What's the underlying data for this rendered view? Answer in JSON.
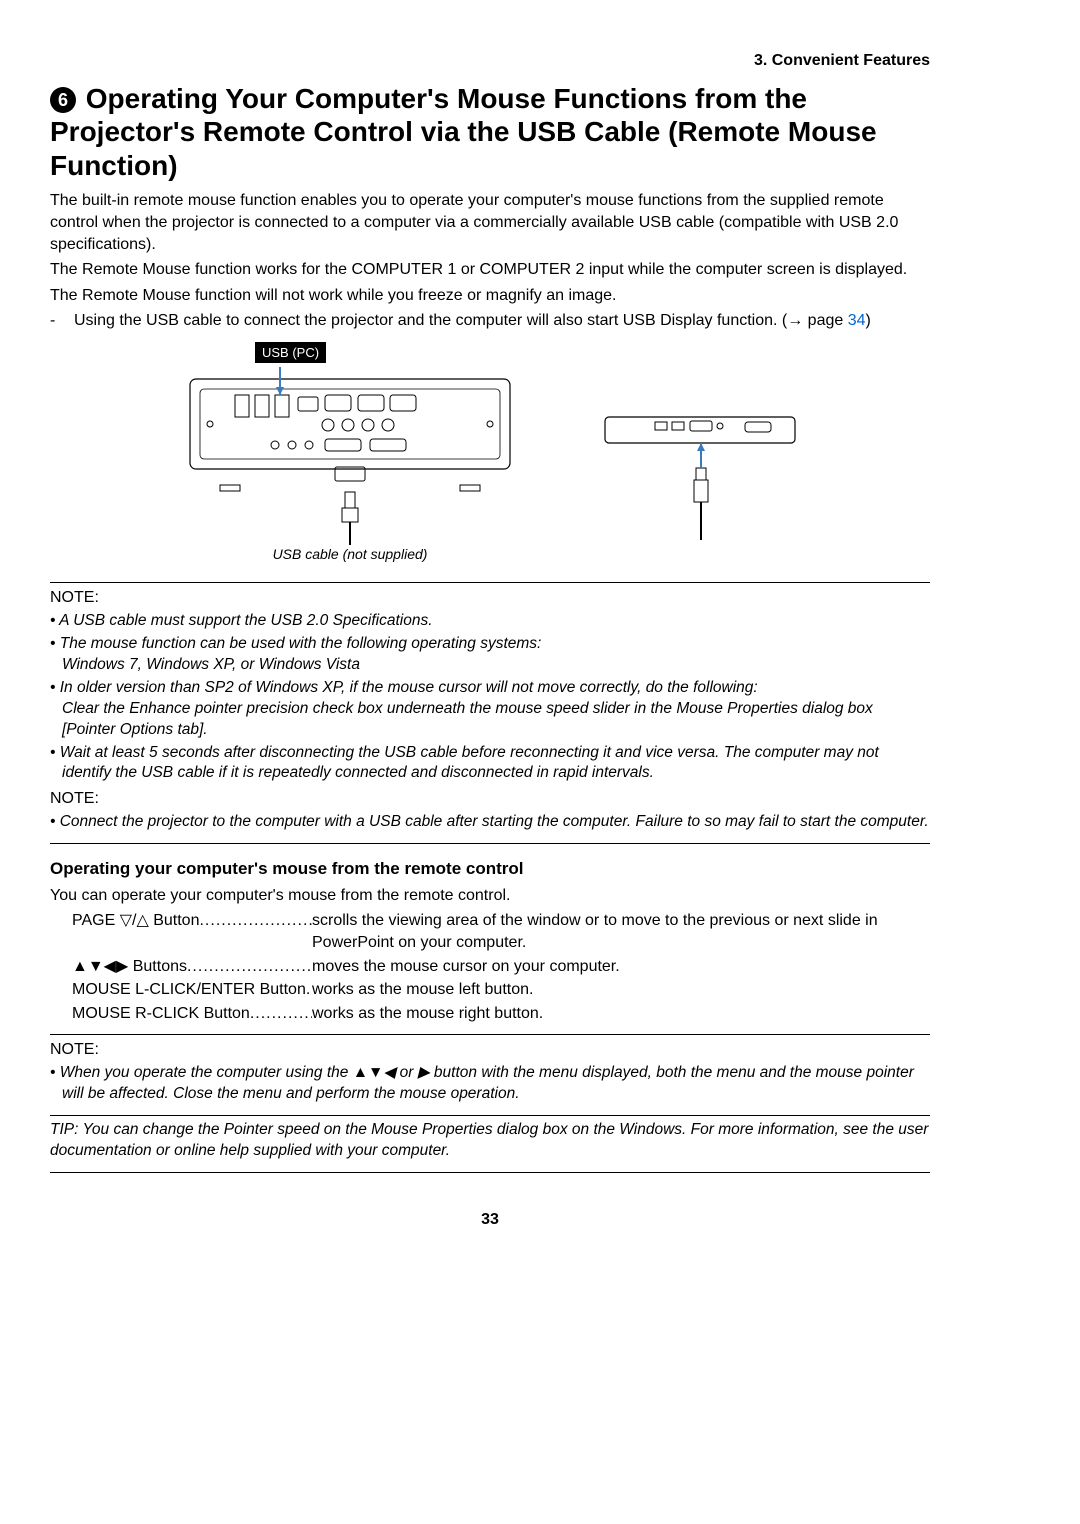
{
  "header": {
    "section": "3. Convenient Features"
  },
  "title": {
    "number": "6",
    "text": "Operating Your Computer's Mouse Functions from the Projector's Remote Control via the USB Cable (Remote Mouse Function)"
  },
  "intro": {
    "p1": "The built-in remote mouse function enables you to operate your computer's mouse functions from the supplied remote control when the projector is connected to a computer via a commercially available USB cable (compatible with USB 2.0 specifications).",
    "p2": "The Remote Mouse function works for the COMPUTER 1 or COMPUTER 2 input while the computer screen is displayed.",
    "p3": "The Remote Mouse function will not work while you freeze or magnify an image.",
    "bullet1a": "-",
    "bullet1b": "Using the USB cable to connect the projector and the computer will also start USB Display function. (→ page ",
    "bullet1c": "34",
    "bullet1d": ")"
  },
  "diagram": {
    "usb_label": "USB (PC)",
    "caption": "USB cable (not supplied)"
  },
  "note1": {
    "label": "NOTE:",
    "items": [
      "A USB cable must support the USB 2.0 Specifications.",
      "The mouse function can be used with the following operating systems:\nWindows 7, Windows XP, or Windows Vista",
      "In older version than SP2 of Windows XP, if the mouse cursor will not move correctly, do the following:\nClear the Enhance pointer precision check box underneath the mouse speed slider in the Mouse Properties dialog box [Pointer Options tab].",
      "Wait at least 5 seconds after disconnecting the USB cable before reconnecting it and vice versa. The computer may not identify the USB cable if it is repeatedly connected and disconnected in rapid intervals."
    ],
    "label2": "NOTE:",
    "items2": [
      "Connect the projector to the computer with a USB cable after starting the computer. Failure to so may fail to start the computer."
    ]
  },
  "operate": {
    "heading": "Operating your computer's mouse from the remote control",
    "intro": "You can operate your computer's mouse from the remote control.",
    "rows": [
      {
        "label": "PAGE ▽/△ Button",
        "desc": "scrolls the viewing area of the window or to move to the previous or next slide in PowerPoint on your computer."
      },
      {
        "label": "▲▼◀▶ Buttons",
        "desc": "moves the mouse cursor on your computer."
      },
      {
        "label": "MOUSE L-CLICK/ENTER Button",
        "desc": "works as the mouse left button."
      },
      {
        "label": "MOUSE R-CLICK Button",
        "desc": "works as the mouse right button."
      }
    ]
  },
  "note2": {
    "label": "NOTE:",
    "items": [
      "When you operate the computer using the ▲▼◀ or ▶ button with the menu displayed, both the menu and the mouse pointer will be affected. Close the menu and perform the mouse operation."
    ]
  },
  "tip": "TIP: You can change the Pointer speed on the Mouse Properties dialog box on the Windows. For more information, see the user documentation or online help supplied with your computer.",
  "pagenum": "33"
}
